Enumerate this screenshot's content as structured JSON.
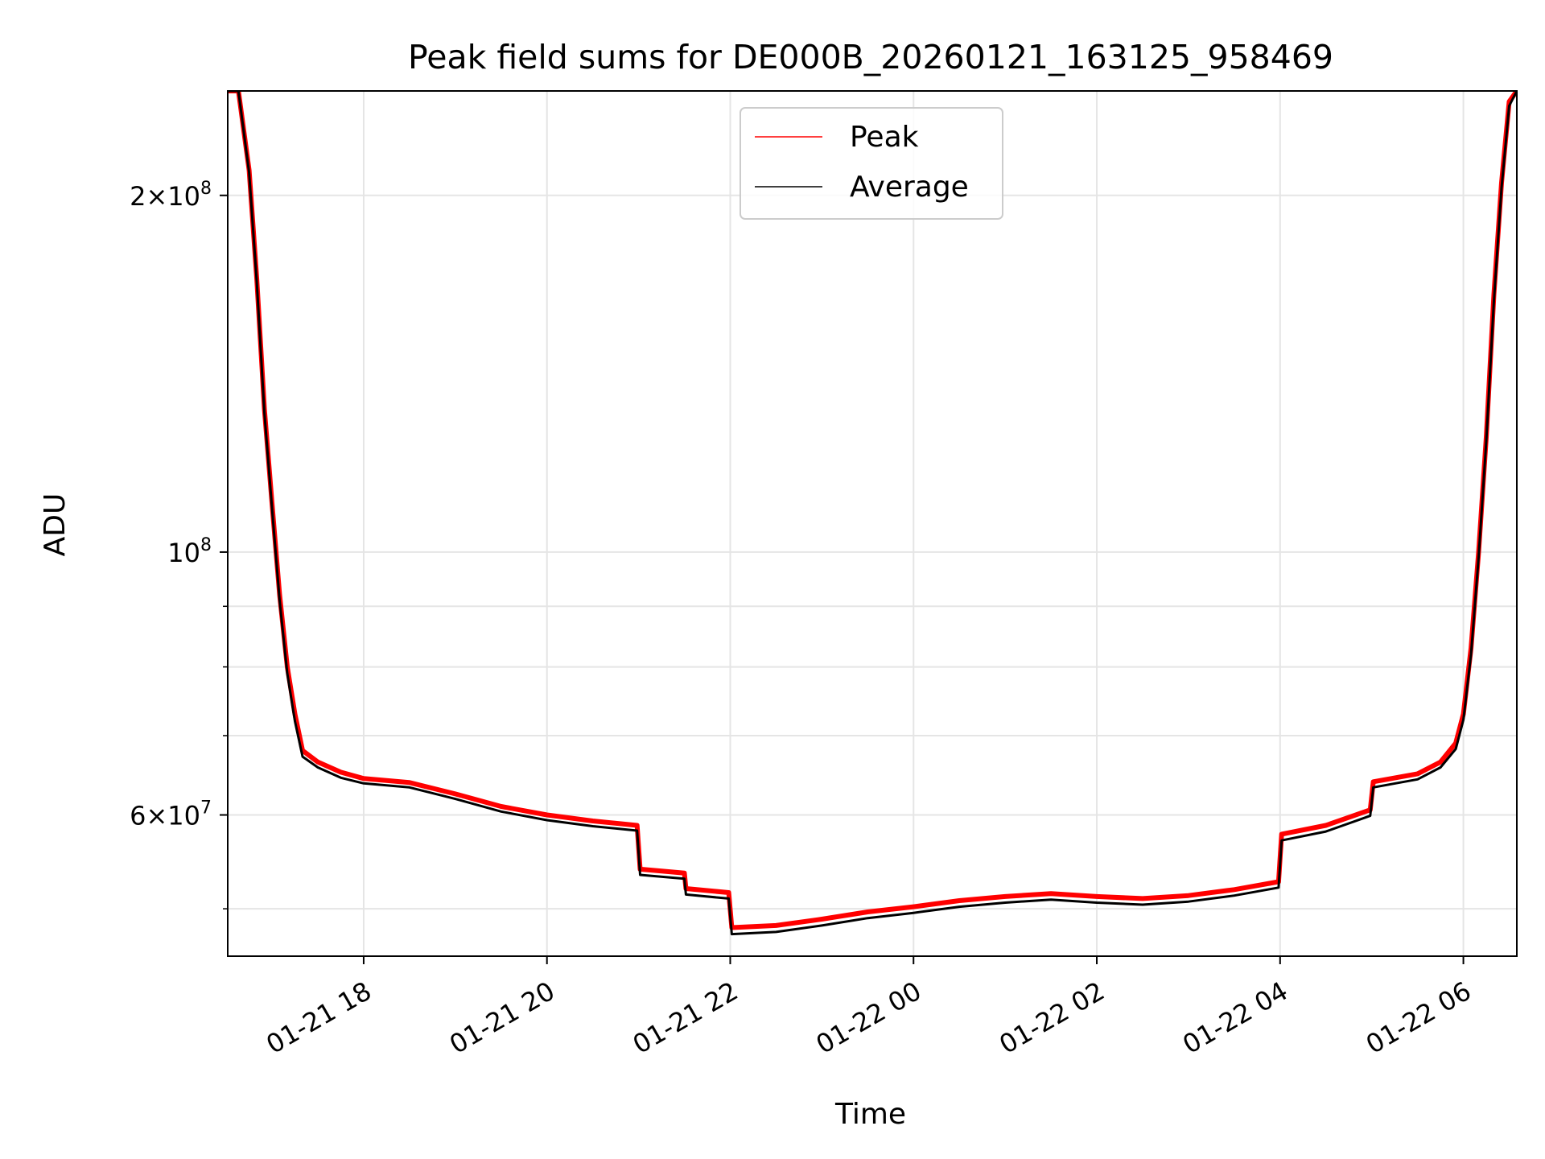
{
  "chart_data": {
    "type": "line",
    "title": "Peak field sums for DE000B_20260121_163125_958469",
    "xlabel": "Time",
    "ylabel": "ADU",
    "x_range": [
      "2026-01-21 16:31",
      "2026-01-22 06:35"
    ],
    "y_range": [
      45600000,
      245000000
    ],
    "yscale": "log",
    "x_tick_labels": [
      "01-21 18",
      "01-21 20",
      "01-21 22",
      "01-22 00",
      "01-22 02",
      "01-22 04",
      "01-22 06"
    ],
    "x_ticks": [
      "2026-01-21 18:00",
      "2026-01-21 20:00",
      "2026-01-21 22:00",
      "2026-01-22 00:00",
      "2026-01-22 02:00",
      "2026-01-22 04:00",
      "2026-01-22 06:00"
    ],
    "y_major_ticks": [
      {
        "value": 200000000,
        "mantissa": "2",
        "exponent": "8"
      },
      {
        "value": 100000000,
        "mantissa": "",
        "exponent": "8"
      },
      {
        "value": 60000000,
        "mantissa": "6",
        "exponent": "7"
      }
    ],
    "y_minor_ticks": [
      50000000,
      70000000,
      80000000,
      90000000
    ],
    "grid": true,
    "legend_position": "top-center",
    "series": [
      {
        "name": "Peak",
        "color": "#ff0000",
        "x": [
          "2026-01-21 16:31",
          "2026-01-21 16:38",
          "2026-01-21 16:45",
          "2026-01-21 16:50",
          "2026-01-21 16:55",
          "2026-01-21 17:00",
          "2026-01-21 17:05",
          "2026-01-21 17:10",
          "2026-01-21 17:15",
          "2026-01-21 17:20",
          "2026-01-21 17:30",
          "2026-01-21 17:45",
          "2026-01-21 18:00",
          "2026-01-21 18:30",
          "2026-01-21 19:00",
          "2026-01-21 19:30",
          "2026-01-21 20:00",
          "2026-01-21 20:30",
          "2026-01-21 20:59",
          "2026-01-21 21:01",
          "2026-01-21 21:30",
          "2026-01-21 21:31",
          "2026-01-21 21:59",
          "2026-01-21 22:01",
          "2026-01-21 22:30",
          "2026-01-21 23:00",
          "2026-01-21 23:30",
          "2026-01-22 00:00",
          "2026-01-22 00:30",
          "2026-01-22 01:00",
          "2026-01-22 01:30",
          "2026-01-22 02:00",
          "2026-01-22 02:30",
          "2026-01-22 03:00",
          "2026-01-22 03:30",
          "2026-01-22 03:59",
          "2026-01-22 04:01",
          "2026-01-22 04:30",
          "2026-01-22 04:59",
          "2026-01-22 05:01",
          "2026-01-22 05:30",
          "2026-01-22 05:45",
          "2026-01-22 05:55",
          "2026-01-22 06:00",
          "2026-01-22 06:05",
          "2026-01-22 06:10",
          "2026-01-22 06:15",
          "2026-01-22 06:20",
          "2026-01-22 06:25",
          "2026-01-22 06:30",
          "2026-01-22 06:35"
        ],
        "y": [
          245000000,
          245000000,
          210000000,
          170000000,
          132000000,
          110000000,
          92000000,
          80000000,
          73000000,
          68000000,
          66500000,
          65200000,
          64400000,
          63900000,
          62500000,
          61000000,
          60000000,
          59300000,
          58800000,
          54000000,
          53600000,
          52000000,
          51600000,
          48200000,
          48400000,
          49000000,
          49700000,
          50200000,
          50800000,
          51200000,
          51500000,
          51200000,
          51000000,
          51300000,
          51900000,
          52700000,
          57800000,
          58800000,
          60600000,
          64000000,
          65000000,
          66500000,
          69000000,
          73000000,
          83000000,
          100000000,
          125000000,
          165000000,
          205000000,
          240000000,
          245000000
        ]
      },
      {
        "name": "Average",
        "color": "#000000",
        "x": [
          "2026-01-21 16:31",
          "2026-01-21 16:38",
          "2026-01-21 16:45",
          "2026-01-21 16:50",
          "2026-01-21 16:55",
          "2026-01-21 17:00",
          "2026-01-21 17:05",
          "2026-01-21 17:10",
          "2026-01-21 17:15",
          "2026-01-21 17:20",
          "2026-01-21 17:30",
          "2026-01-21 17:45",
          "2026-01-21 18:00",
          "2026-01-21 18:30",
          "2026-01-21 19:00",
          "2026-01-21 19:30",
          "2026-01-21 20:00",
          "2026-01-21 20:30",
          "2026-01-21 20:59",
          "2026-01-21 21:01",
          "2026-01-21 21:30",
          "2026-01-21 21:31",
          "2026-01-21 21:59",
          "2026-01-21 22:01",
          "2026-01-21 22:30",
          "2026-01-21 23:00",
          "2026-01-21 23:30",
          "2026-01-22 00:00",
          "2026-01-22 00:30",
          "2026-01-22 01:00",
          "2026-01-22 01:30",
          "2026-01-22 02:00",
          "2026-01-22 02:30",
          "2026-01-22 03:00",
          "2026-01-22 03:30",
          "2026-01-22 03:59",
          "2026-01-22 04:01",
          "2026-01-22 04:30",
          "2026-01-22 04:59",
          "2026-01-22 05:01",
          "2026-01-22 05:30",
          "2026-01-22 05:45",
          "2026-01-22 05:55",
          "2026-01-22 06:00",
          "2026-01-22 06:05",
          "2026-01-22 06:10",
          "2026-01-22 06:15",
          "2026-01-22 06:20",
          "2026-01-22 06:25",
          "2026-01-22 06:30",
          "2026-01-22 06:35"
        ],
        "y": [
          245000000,
          245000000,
          209000000,
          169000000,
          131000000,
          109000000,
          91000000,
          79000000,
          72000000,
          67200000,
          65800000,
          64500000,
          63800000,
          63300000,
          61900000,
          60400000,
          59400000,
          58700000,
          58200000,
          53400000,
          53000000,
          51400000,
          51000000,
          47600000,
          47800000,
          48400000,
          49100000,
          49600000,
          50200000,
          50600000,
          50900000,
          50600000,
          50400000,
          50700000,
          51300000,
          52100000,
          57100000,
          58100000,
          59900000,
          63300000,
          64300000,
          65800000,
          68200000,
          72200000,
          82000000,
          99000000,
          124000000,
          163000000,
          203000000,
          238000000,
          245000000
        ]
      }
    ]
  }
}
